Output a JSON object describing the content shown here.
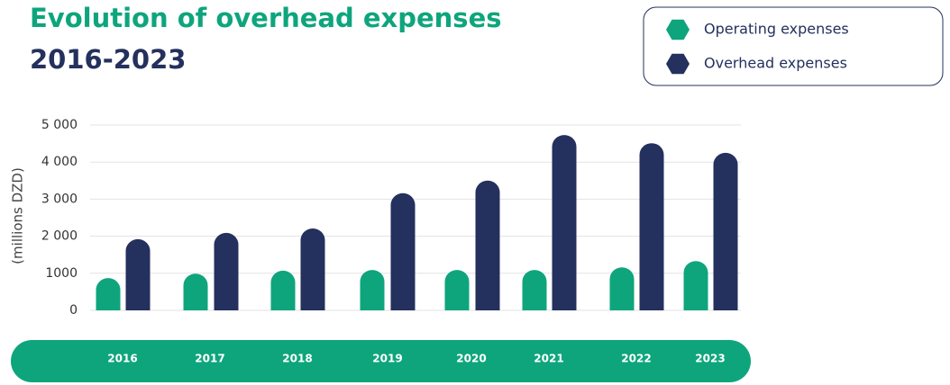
{
  "chart_data": {
    "type": "bar",
    "title": "Evolution of overhead expenses",
    "subtitle": "2016-2023",
    "y_label": "(millions DZD)",
    "categories": [
      "2016",
      "2017",
      "2018",
      "2019",
      "2020",
      "2021",
      "2022",
      "2023"
    ],
    "series": [
      {
        "name": "Operating expenses",
        "color": "#0ea57d",
        "values": [
          870,
          990,
          1070,
          1090,
          1090,
          1090,
          1160,
          1330
        ]
      },
      {
        "name": "Overhead expenses",
        "color": "#24305d",
        "values": [
          1920,
          2090,
          2210,
          3160,
          3500,
          4730,
          4510,
          4250
        ]
      }
    ],
    "ylim": [
      0,
      5000
    ],
    "yticks": [
      0,
      1000,
      {
        "value": 2000,
        "label": "2 000"
      },
      {
        "value": 3000,
        "label": "3 000"
      },
      {
        "value": 4000,
        "label": "4 000"
      },
      {
        "value": 5000,
        "label": "5 000"
      }
    ],
    "grid": true,
    "legend": "top-right"
  }
}
